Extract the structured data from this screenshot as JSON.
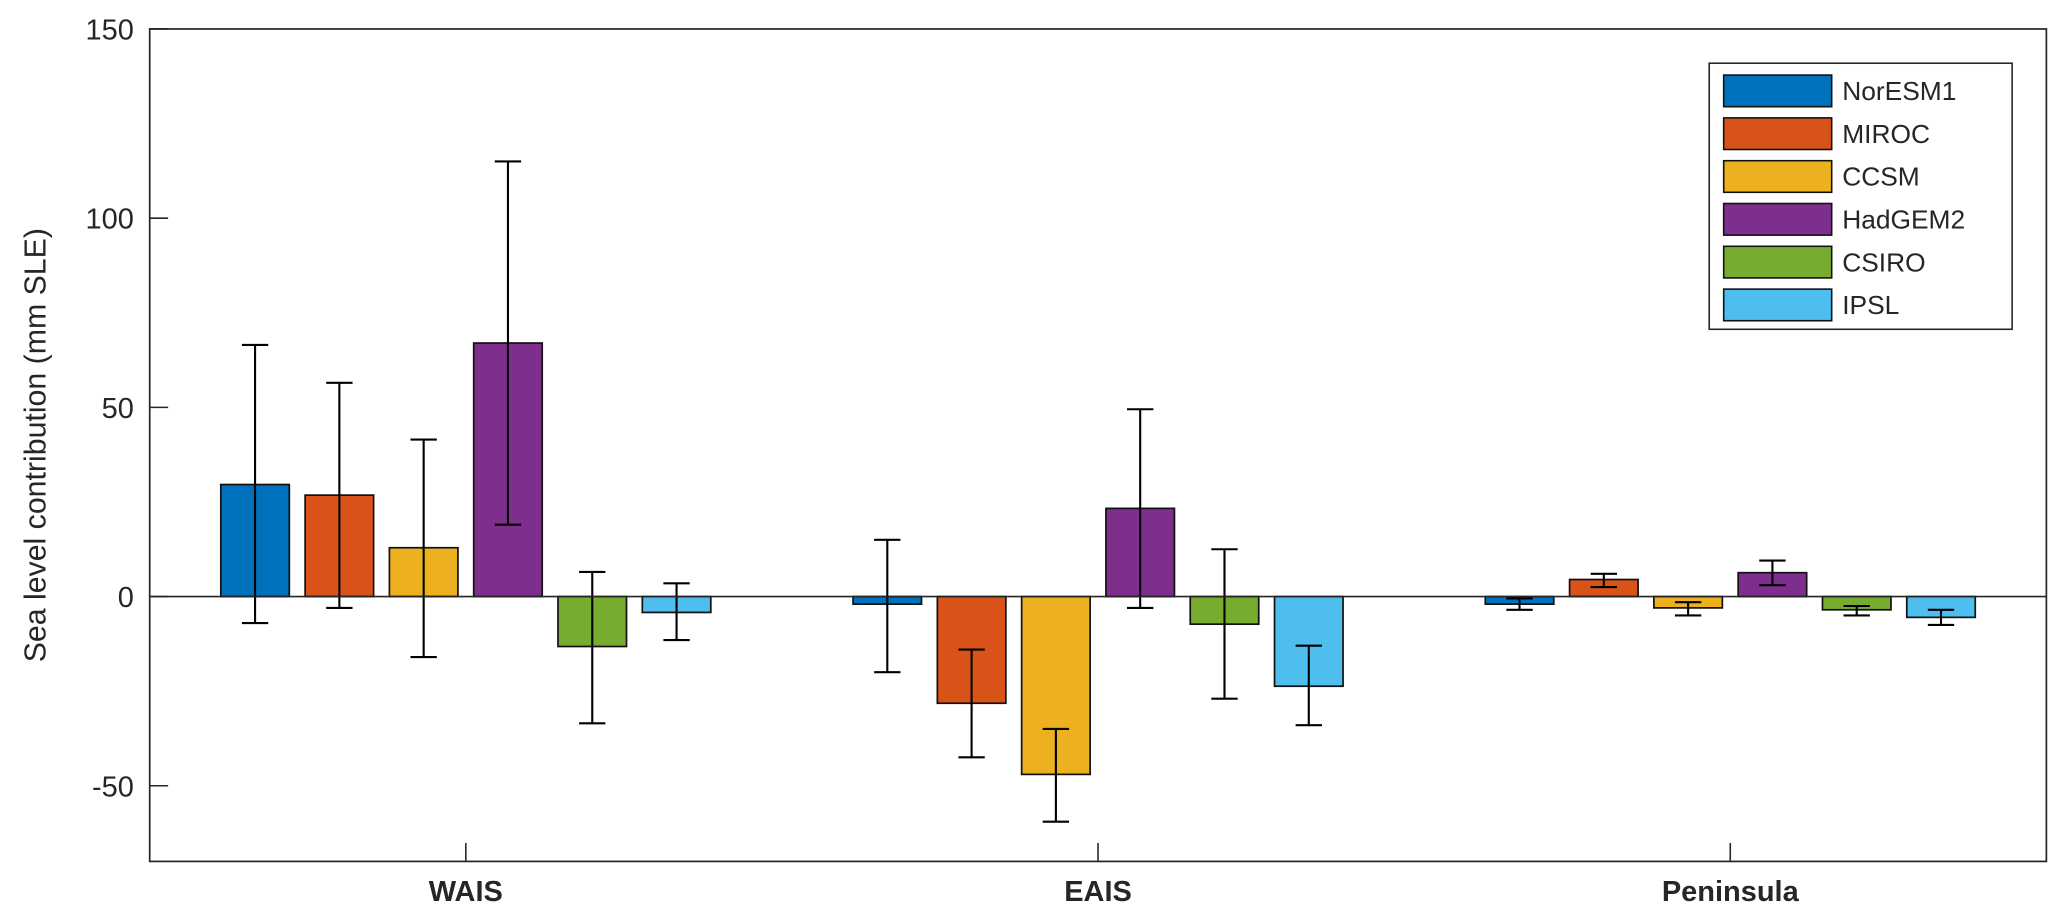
{
  "chart_data": {
    "type": "bar",
    "title": "",
    "xlabel": "",
    "ylabel": "Sea level contribution (mm SLE)",
    "ylim": [
      -70,
      150
    ],
    "yticks": [
      -50,
      0,
      50,
      100,
      150
    ],
    "grid": false,
    "legend_position": "top-right",
    "categories": [
      "WAIS",
      "EAIS",
      "Peninsula"
    ],
    "series": [
      {
        "name": "NorESM1",
        "color": "#0072BD",
        "values": [
          29.6,
          -2,
          -2
        ],
        "err_low": [
          -7,
          -20,
          -3.5
        ],
        "err_high": [
          66.5,
          15,
          -0.5
        ]
      },
      {
        "name": "MIROC",
        "color": "#D95319",
        "values": [
          26.8,
          -28.2,
          4.5
        ],
        "err_low": [
          -3,
          -42.5,
          2.5
        ],
        "err_high": [
          56.5,
          -14,
          6
        ]
      },
      {
        "name": "CCSM",
        "color": "#EDB120",
        "values": [
          12.9,
          -47,
          -3
        ],
        "err_low": [
          -16,
          -59.5,
          -5
        ],
        "err_high": [
          41.5,
          -35,
          -1.5
        ]
      },
      {
        "name": "HadGEM2",
        "color": "#7E2F8E",
        "values": [
          67,
          23.3,
          6.3
        ],
        "err_low": [
          19,
          -3,
          3
        ],
        "err_high": [
          115,
          49.5,
          9.5
        ]
      },
      {
        "name": "CSIRO",
        "color": "#77AC30",
        "values": [
          -13.2,
          -7.3,
          -3.5
        ],
        "err_low": [
          -33.5,
          -27,
          -5
        ],
        "err_high": [
          6.5,
          12.5,
          -2.5
        ]
      },
      {
        "name": "IPSL",
        "color": "#4DBEEE",
        "values": [
          -4.2,
          -23.7,
          -5.5
        ],
        "err_low": [
          -11.5,
          -34,
          -7.5
        ],
        "err_high": [
          3.5,
          -13,
          -3.5
        ]
      }
    ]
  }
}
